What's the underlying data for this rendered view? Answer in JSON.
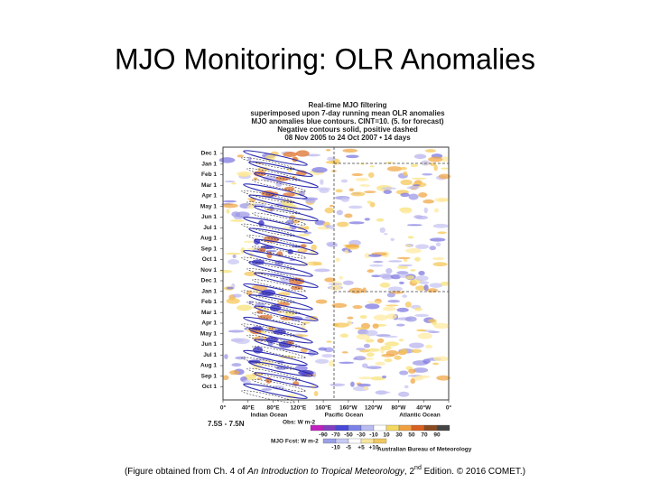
{
  "slide": {
    "title": "MJO Monitoring: OLR Anomalies",
    "figure": {
      "title_lines": [
        "Real-time MJO filtering",
        "superimposed upon 7-day running mean OLR anomalies",
        "MJO anomalies blue contours. CINT=10. (5. for forecast)",
        "Negative contours solid, positive dashed",
        "08 Nov 2005 to 24 Oct 2007 • 14 days"
      ],
      "y_labels": [
        "Dec 1",
        "Jan 1",
        "Feb 1",
        "Mar 1",
        "Apr 1",
        "May 1",
        "Jun 1",
        "Jul 1",
        "Aug 1",
        "Sep 1",
        "Oct 1",
        "Nov 1",
        "Dec 1",
        "Jan 1",
        "Feb 1",
        "Mar 1",
        "Apr 1",
        "May 1",
        "Jun 1",
        "Jul 1",
        "Aug 1",
        "Sep 1",
        "Oct 1"
      ],
      "x_labels": [
        "0°",
        "40°E",
        "80°E",
        "120°E",
        "160°E",
        "160°W",
        "120°W",
        "80°W",
        "40°W",
        "0°"
      ],
      "regions": [
        "Indian Ocean",
        "Pacific Ocean",
        "Atlantic Ocean"
      ],
      "latitude_band": "7.5S - 7.5N",
      "obs_label": "Obs: W m-2",
      "obs_scale": [
        "-90",
        "-70",
        "-50",
        "-30",
        "-10",
        "10",
        "30",
        "50",
        "70",
        "90"
      ],
      "fcst_label": "MJO Fcst: W m-2",
      "fcst_scale": [
        "-10",
        "-5",
        "+5",
        "+10"
      ],
      "credit": "Australian Bureau of Meteorology"
    },
    "caption": {
      "before": "(Figure obtained from Ch. 4 of ",
      "book": "An Introduction to Tropical Meteorology",
      "edition": ", 2",
      "sup": "nd",
      "after": " Edition. © 2016 COMET.)"
    }
  }
}
